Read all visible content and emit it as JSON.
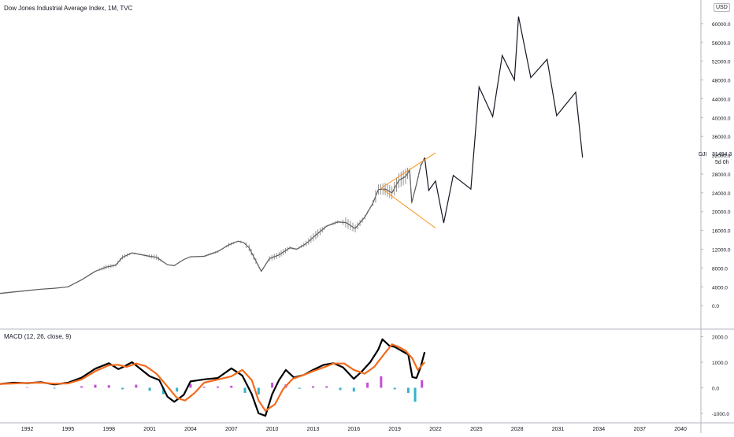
{
  "header": {
    "title": "Dow Jones Industrial Average Index, 1M, TVC",
    "currency": "USD",
    "symbol": "DJI",
    "last_price": "31494.3",
    "countdown": "5d 0h"
  },
  "macd": {
    "label": "MACD (12, 26, close, 9)"
  },
  "colors": {
    "background": "#ffffff",
    "price_line": "#131722",
    "triangle": "#f7931a",
    "macd_line": "#000000",
    "signal_line": "#f26b1d",
    "hist_positive": "#c34fd6",
    "hist_negative": "#33b4c9",
    "grid_separator": "#b2b5be"
  },
  "chart_data": [
    {
      "type": "line",
      "title": "Dow Jones Industrial Average Index, 1M, TVC",
      "y_axis_ticks": [
        "60000.0",
        "56000.0",
        "52000.0",
        "48000.0",
        "44000.0",
        "40000.0",
        "36000.0",
        "32000.0",
        "28000.0",
        "24000.0",
        "20000.0",
        "16000.0",
        "12000.0",
        "8000.0",
        "4000.0",
        "0.0"
      ],
      "x_axis_ticks": [
        "1992",
        "1995",
        "1998",
        "2001",
        "2004",
        "2007",
        "2010",
        "2013",
        "2016",
        "2019",
        "2022",
        "2025",
        "2028",
        "2031",
        "2034",
        "2037",
        "2040"
      ],
      "xlim": [
        1990.0,
        2041.5
      ],
      "ylim": [
        -5000,
        63000
      ],
      "series": [
        {
          "x": [
            1990.0,
            1992,
            1993,
            1994,
            1995,
            1996,
            1997,
            1997.8,
            1998.5,
            1999,
            1999.7,
            2000.1,
            2000.8,
            2001.5,
            2002.3,
            2002.8,
            2003.5,
            2004,
            2005,
            2006,
            2006.8,
            2007.5,
            2007.9,
            2008.3,
            2008.8,
            2009.2,
            2009.8,
            2010.5,
            2011.3,
            2011.8,
            2012.5,
            2013.2,
            2014,
            2014.8,
            2015.4,
            2016.1,
            2016.8,
            2017.4,
            2017.8,
            2018.3,
            2018.8,
            2019.3,
            2019.8,
            2020.1,
            2020.25,
            2020.6,
            2020.9,
            2021.2
          ],
          "values": [
            2600,
            3200,
            3500,
            3700,
            4000,
            5500,
            7300,
            8200,
            8600,
            10300,
            11200,
            11000,
            10600,
            10300,
            8700,
            8500,
            9800,
            10400,
            10500,
            11500,
            12900,
            13700,
            13400,
            12300,
            9500,
            7300,
            10000,
            10800,
            12300,
            12000,
            13200,
            15000,
            16900,
            17800,
            17700,
            16400,
            18800,
            21800,
            24700,
            24800,
            24000,
            26600,
            27500,
            28800,
            21900,
            25800,
            29600,
            31494
          ]
        },
        {
          "name": "projection",
          "x": [
            2021.2,
            2021.5,
            2022.0,
            2022.6,
            2023.3,
            2024.6,
            2025.2,
            2026.2,
            2026.9,
            2027.8,
            2028.1,
            2029.0,
            2030.2,
            2030.9,
            2032.3
          ],
          "values": [
            31494,
            24500,
            26500,
            17600,
            27700,
            24800,
            46500,
            40200,
            53200,
            48000,
            61500,
            48500,
            52400,
            40400,
            45400
          ]
        }
      ],
      "projection_end": {
        "x": 2032.8,
        "value": 31494
      },
      "annotations": [
        {
          "type": "triangle",
          "apex": {
            "x": 2018.0,
            "value": 25000
          },
          "upper": {
            "x": 2022.0,
            "value": 32500
          },
          "lower": {
            "x": 2022.0,
            "value": 16500
          }
        }
      ]
    },
    {
      "type": "line",
      "title": "MACD (12, 26, close, 9)",
      "y_axis_ticks": [
        "2000.0",
        "1000.0",
        "0.0",
        "-1000.0"
      ],
      "ylim": [
        -1250,
        2050
      ],
      "series": [
        {
          "name": "MACD",
          "x": [
            1990,
            1991,
            1992,
            1993,
            1994,
            1995,
            1996,
            1997,
            1998,
            1998.7,
            1999,
            1999.7,
            2000.3,
            2001,
            2001.7,
            2002.3,
            2002.8,
            2003.5,
            2004,
            2005,
            2006,
            2007,
            2007.8,
            2008.5,
            2009.0,
            2009.5,
            2010,
            2010.5,
            2011,
            2011.6,
            2012.3,
            2013,
            2013.8,
            2014.5,
            2015.2,
            2016,
            2016.6,
            2017.2,
            2017.8,
            2018.1,
            2018.6,
            2019,
            2019.5,
            2020,
            2020.3,
            2020.6,
            2020.9,
            2021.2
          ],
          "values": [
            150,
            200,
            180,
            220,
            130,
            200,
            400,
            750,
            960,
            730,
            800,
            1000,
            750,
            450,
            300,
            -350,
            -550,
            -280,
            250,
            330,
            380,
            760,
            480,
            -250,
            -1000,
            -1100,
            -250,
            300,
            700,
            400,
            500,
            700,
            900,
            960,
            800,
            350,
            650,
            1000,
            1500,
            1900,
            1650,
            1600,
            1450,
            1300,
            420,
            380,
            800,
            1400
          ]
        },
        {
          "name": "Signal",
          "x": [
            1990,
            1991,
            1992,
            1993,
            1994,
            1995,
            1996,
            1997,
            1998,
            1998.7,
            1999.3,
            2000,
            2000.7,
            2001.5,
            2002.3,
            2003,
            2003.6,
            2004.3,
            2005,
            2006,
            2007,
            2007.8,
            2008.5,
            2009.0,
            2009.5,
            2010.2,
            2010.8,
            2011.5,
            2012.3,
            2013,
            2013.8,
            2014.5,
            2015.3,
            2016,
            2016.8,
            2017.5,
            2018.2,
            2018.8,
            2019.3,
            2019.8,
            2020.3,
            2020.7,
            2021.2
          ],
          "values": [
            150,
            170,
            190,
            200,
            160,
            170,
            330,
            650,
            880,
            900,
            820,
            950,
            850,
            550,
            50,
            -400,
            -500,
            -200,
            200,
            320,
            450,
            700,
            300,
            -500,
            -900,
            -650,
            -50,
            350,
            500,
            650,
            800,
            950,
            950,
            700,
            550,
            820,
            1300,
            1700,
            1600,
            1450,
            1150,
            700,
            1000
          ]
        },
        {
          "name": "Histogram",
          "x": [
            1992,
            1994,
            1996,
            1997,
            1998,
            1999,
            2000,
            2001,
            2002,
            2003,
            2004,
            2005,
            2006,
            2007,
            2008,
            2009,
            2010,
            2011,
            2012,
            2013,
            2014,
            2015,
            2016,
            2017,
            2018,
            2019,
            2020,
            2020.5,
            2021
          ],
          "values": [
            20,
            -30,
            60,
            120,
            100,
            -60,
            120,
            -120,
            -250,
            -150,
            150,
            40,
            50,
            80,
            -200,
            -260,
            200,
            130,
            -40,
            60,
            60,
            -90,
            -150,
            200,
            450,
            -60,
            -200,
            -550,
            300
          ]
        }
      ]
    }
  ]
}
